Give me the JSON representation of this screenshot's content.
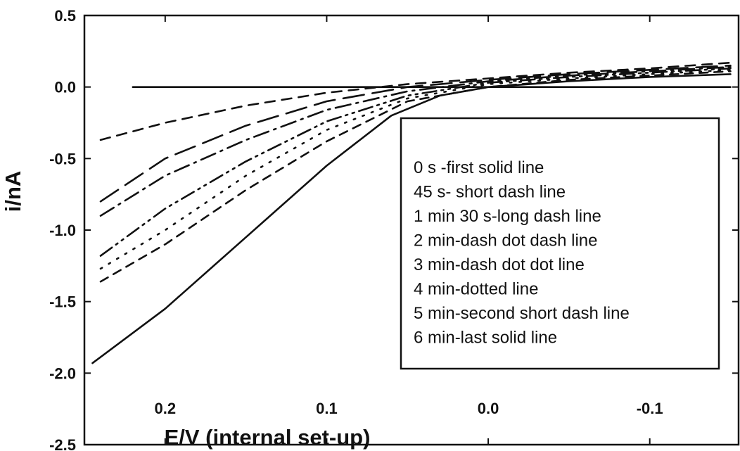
{
  "chart_data": {
    "type": "line",
    "xlabel": "E/V (internal set-up)",
    "ylabel": "i/nA",
    "xlim": [
      0.25,
      -0.155
    ],
    "ylim": [
      -2.5,
      0.5
    ],
    "x_reversed": true,
    "x_ticks": [
      {
        "value": 0.2,
        "label": "0.2"
      },
      {
        "value": 0.1,
        "label": "0.1"
      },
      {
        "value": 0.0,
        "label": "0.0"
      },
      {
        "value": -0.1,
        "label": "-0.1"
      }
    ],
    "y_ticks": [
      {
        "value": 0.5,
        "label": "0.5"
      },
      {
        "value": 0.0,
        "label": "0.0"
      },
      {
        "value": -0.5,
        "label": "-0.5"
      },
      {
        "value": -1.0,
        "label": "-1.0"
      },
      {
        "value": -1.5,
        "label": "-1.5"
      },
      {
        "value": -2.0,
        "label": "-2.0"
      },
      {
        "value": -2.5,
        "label": "-2.5"
      }
    ],
    "grid": false,
    "legend_position": "right",
    "legend": [
      "0 s -first solid line",
      "45 s- short dash line",
      "1 min 30 s-long dash line",
      "2 min-dash dot dash line",
      "3 min-dash dot dot line",
      "4 min-dotted line",
      "5 min-second short dash line",
      "6 min-last solid line"
    ],
    "series": [
      {
        "style": "solid",
        "color": "#111111",
        "x": [
          0.22,
          0.15,
          0.1,
          0.05,
          0.0,
          -0.05,
          -0.1,
          -0.15
        ],
        "y": [
          0.0,
          0.0,
          0.0,
          0.0,
          0.0,
          0.0,
          0.0,
          0.0
        ]
      },
      {
        "style": "short-dash",
        "color": "#111111",
        "x": [
          0.24,
          0.2,
          0.15,
          0.1,
          0.05,
          0.0,
          -0.05,
          -0.1,
          -0.15
        ],
        "y": [
          -0.37,
          -0.25,
          -0.13,
          -0.04,
          0.02,
          0.06,
          0.1,
          0.13,
          0.17
        ]
      },
      {
        "style": "long-dash",
        "color": "#111111",
        "x": [
          0.24,
          0.2,
          0.15,
          0.1,
          0.05,
          0.0,
          -0.05,
          -0.1,
          -0.15
        ],
        "y": [
          -0.8,
          -0.5,
          -0.27,
          -0.1,
          0.0,
          0.05,
          0.09,
          0.12,
          0.15
        ]
      },
      {
        "style": "dash-dot-dash",
        "color": "#111111",
        "x": [
          0.24,
          0.2,
          0.15,
          0.1,
          0.05,
          0.0,
          -0.05,
          -0.1,
          -0.15
        ],
        "y": [
          -0.9,
          -0.62,
          -0.37,
          -0.16,
          -0.03,
          0.04,
          0.08,
          0.11,
          0.14
        ]
      },
      {
        "style": "dash-dot-dot",
        "color": "#111111",
        "x": [
          0.24,
          0.2,
          0.15,
          0.1,
          0.05,
          0.0,
          -0.05,
          -0.1,
          -0.15
        ],
        "y": [
          -1.18,
          -0.85,
          -0.52,
          -0.24,
          -0.06,
          0.03,
          0.07,
          0.1,
          0.13
        ]
      },
      {
        "style": "dotted",
        "color": "#111111",
        "x": [
          0.24,
          0.2,
          0.15,
          0.1,
          0.05,
          0.0,
          -0.05,
          -0.1,
          -0.15
        ],
        "y": [
          -1.27,
          -1.0,
          -0.62,
          -0.3,
          -0.08,
          0.02,
          0.06,
          0.09,
          0.12
        ]
      },
      {
        "style": "second-short-dash",
        "color": "#111111",
        "x": [
          0.24,
          0.2,
          0.15,
          0.1,
          0.05,
          0.0,
          -0.05,
          -0.1,
          -0.15
        ],
        "y": [
          -1.36,
          -1.1,
          -0.72,
          -0.38,
          -0.1,
          0.0,
          0.05,
          0.08,
          0.11
        ]
      },
      {
        "style": "solid",
        "color": "#111111",
        "x": [
          0.245,
          0.2,
          0.15,
          0.1,
          0.06,
          0.03,
          0.0,
          -0.05,
          -0.1,
          -0.15
        ],
        "y": [
          -1.93,
          -1.55,
          -1.05,
          -0.55,
          -0.2,
          -0.06,
          0.0,
          0.04,
          0.07,
          0.09
        ]
      }
    ]
  }
}
